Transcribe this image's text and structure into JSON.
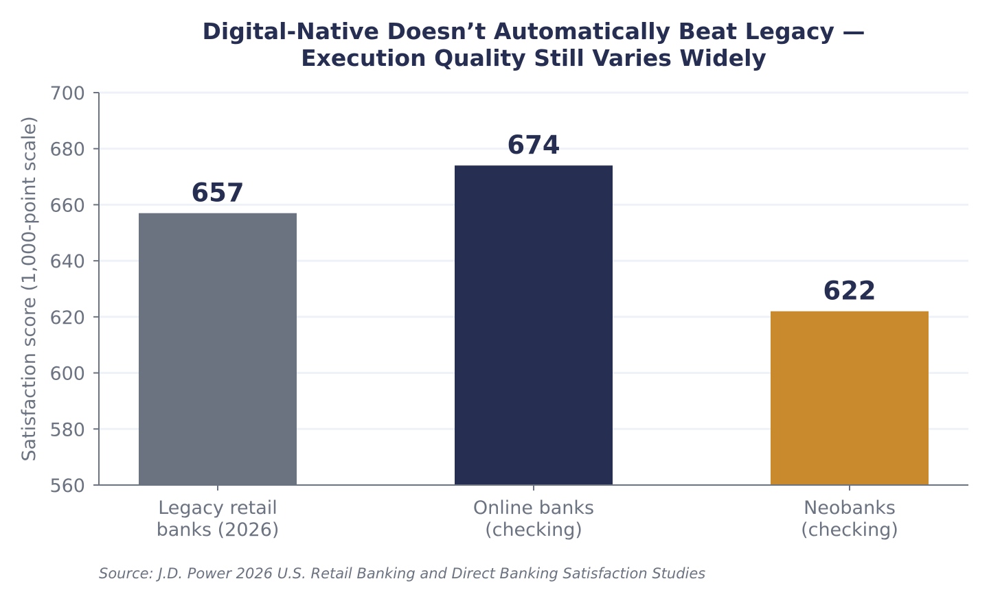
{
  "chart_data": {
    "type": "bar",
    "title_lines": [
      "Digital-Native Doesn’t Automatically Beat Legacy —",
      "Execution Quality Still Varies Widely"
    ],
    "ylabel": "Satisfaction score (1,000-point scale)",
    "xlabel": "",
    "ylim": [
      560,
      700
    ],
    "yticks": [
      560,
      580,
      600,
      620,
      640,
      660,
      680,
      700
    ],
    "grid": true,
    "categories": [
      [
        "Legacy retail",
        "banks (2026)"
      ],
      [
        "Online banks",
        "(checking)"
      ],
      [
        "Neobanks",
        "(checking)"
      ]
    ],
    "values": [
      657,
      674,
      622
    ],
    "value_labels": [
      "657",
      "674",
      "622"
    ],
    "colors": [
      "#6b7280",
      "#262e52",
      "#c88a2c"
    ],
    "source": "Source: J.D. Power 2026 U.S. Retail Banking and Direct Banking Satisfaction Studies"
  }
}
